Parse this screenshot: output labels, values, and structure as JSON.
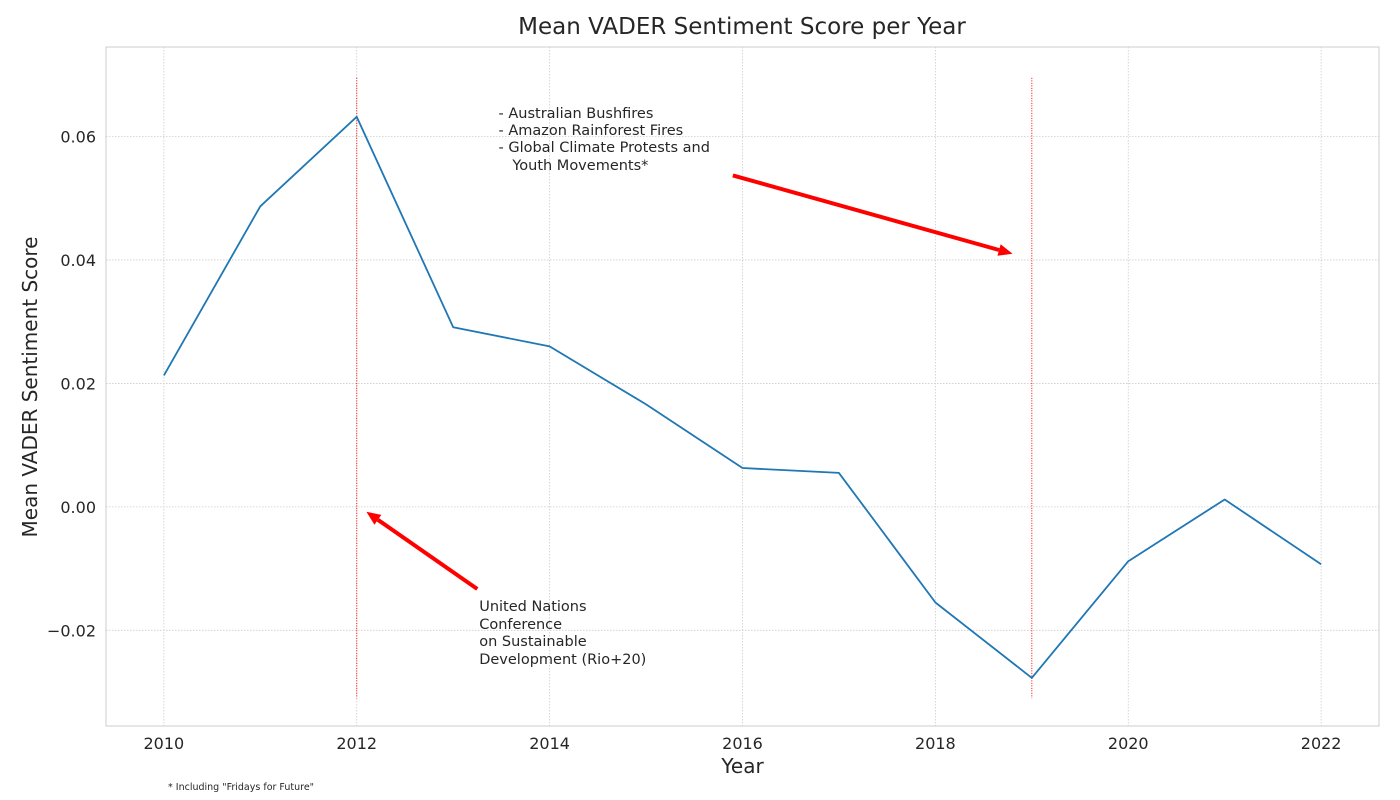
{
  "chart_data": {
    "type": "line",
    "title": "Mean VADER Sentiment Score per Year",
    "xlabel": "Year",
    "ylabel": "Mean VADER Sentiment Score",
    "xlim": [
      2009.4,
      2022.6
    ],
    "ylim": [
      -0.0355,
      0.0745
    ],
    "x_ticks": [
      2010,
      2012,
      2014,
      2016,
      2018,
      2020,
      2022
    ],
    "y_ticks": [
      -0.02,
      0.0,
      0.02,
      0.04,
      0.06
    ],
    "y_tick_labels": [
      "−0.02",
      "0.00",
      "0.02",
      "0.04",
      "0.06"
    ],
    "grid": true,
    "series": [
      {
        "color": "#1f77b4",
        "x": [
          2010,
          2011,
          2012,
          2013,
          2014,
          2015,
          2016,
          2017,
          2018,
          2019,
          2020,
          2021,
          2022
        ],
        "y": [
          0.0213,
          0.0487,
          0.0632,
          0.0291,
          0.026,
          0.0166,
          0.0063,
          0.0055,
          -0.0155,
          -0.0277,
          -0.0088,
          0.0012,
          -0.0093
        ]
      }
    ],
    "vlines": [
      {
        "x": 2012,
        "y0": -0.031,
        "y1": 0.0695,
        "color": "#ff0000"
      },
      {
        "x": 2019,
        "y0": -0.031,
        "y1": 0.0695,
        "color": "#ff0000"
      }
    ],
    "arrows": [
      {
        "from_x": 2013.25,
        "from_y": -0.0133,
        "to_x": 2012.1,
        "to_y": -0.0008,
        "color": "#ff0000"
      },
      {
        "from_x": 2015.9,
        "from_y": 0.0537,
        "to_x": 2018.8,
        "to_y": 0.041,
        "color": "#ff0000"
      }
    ],
    "annotations": [
      {
        "text": "United Nations\nConference\non Sustainable\nDevelopment (Rio+20)",
        "x": 2013.27,
        "y": -0.015
      },
      {
        "text": "- Australian Bushfires\n- Amazon Rainforest Fires\n- Global Climate Protests and\n   Youth Movements*",
        "x": 2013.47,
        "y": 0.065
      }
    ],
    "footnote": "* Including \"Fridays for Future\""
  }
}
